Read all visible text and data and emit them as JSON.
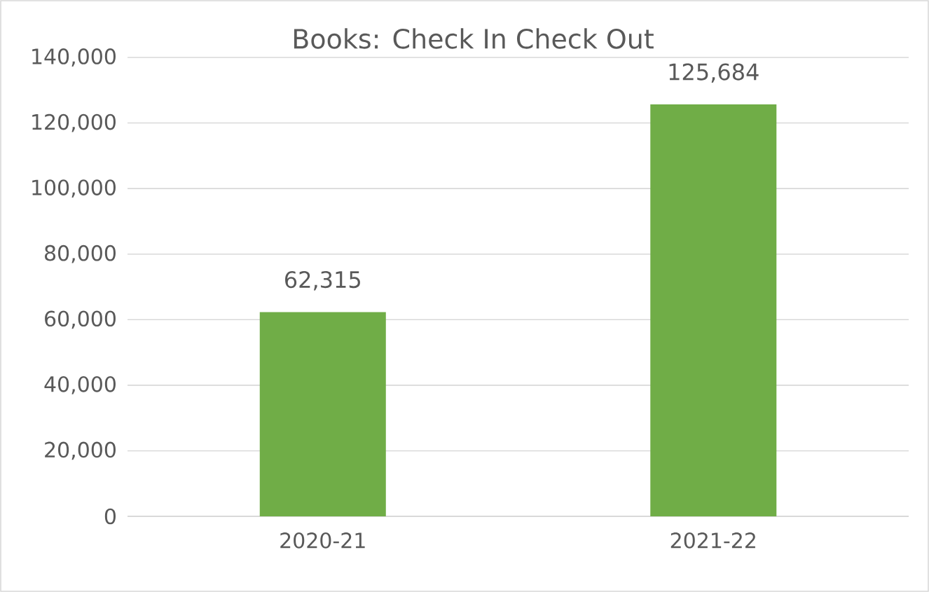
{
  "chart_data": {
    "type": "bar",
    "title": "Books: Check In Check Out",
    "categories": [
      "2020-21",
      "2021-22"
    ],
    "values": [
      62315,
      125684
    ],
    "value_labels": [
      "62,315",
      "125,684"
    ],
    "color": "#70ad47",
    "ylim": [
      0,
      140000
    ],
    "yticks": [
      0,
      {
        "value": 20000,
        "label": "20,000"
      },
      {
        "value": 40000,
        "label": "40,000"
      },
      {
        "value": 60000,
        "label": "60,000"
      },
      {
        "value": 80000,
        "label": "80,000"
      },
      {
        "value": 100000,
        "label": "100,000"
      },
      {
        "value": 120000,
        "label": "120,000"
      },
      {
        "value": 140000,
        "label": "140,000"
      }
    ],
    "grid": "y"
  }
}
